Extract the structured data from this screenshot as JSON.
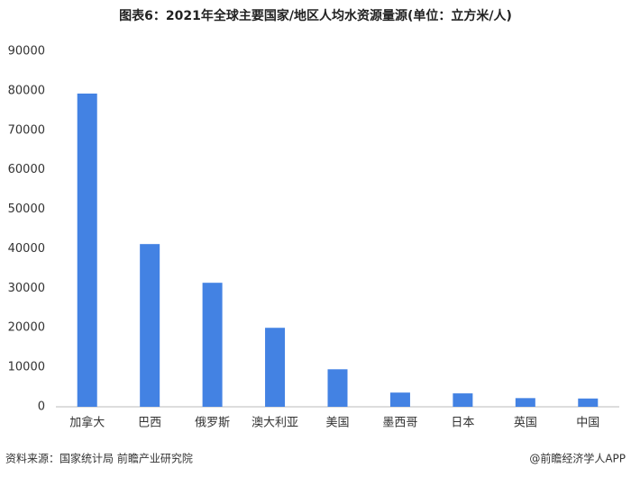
{
  "chart_data": {
    "type": "bar",
    "title": "图表6：2021年全球主要国家/地区人均水资源量源(单位：立方米/人)",
    "categories": [
      "加拿大",
      "巴西",
      "俄罗斯",
      "澳大利亚",
      "美国",
      "墨西哥",
      "日本",
      "英国",
      "中国"
    ],
    "values": [
      79300,
      41200,
      31400,
      20000,
      9500,
      3600,
      3400,
      2200,
      2100
    ],
    "color": "#4382e3",
    "ylim": [
      0,
      90000
    ],
    "yticks": [
      0,
      10000,
      20000,
      30000,
      40000,
      50000,
      60000,
      70000,
      80000,
      90000
    ],
    "grid": false,
    "source": "资料来源：国家统计局 前瞻产业研究院",
    "brand": "@前瞻经济学人APP"
  }
}
